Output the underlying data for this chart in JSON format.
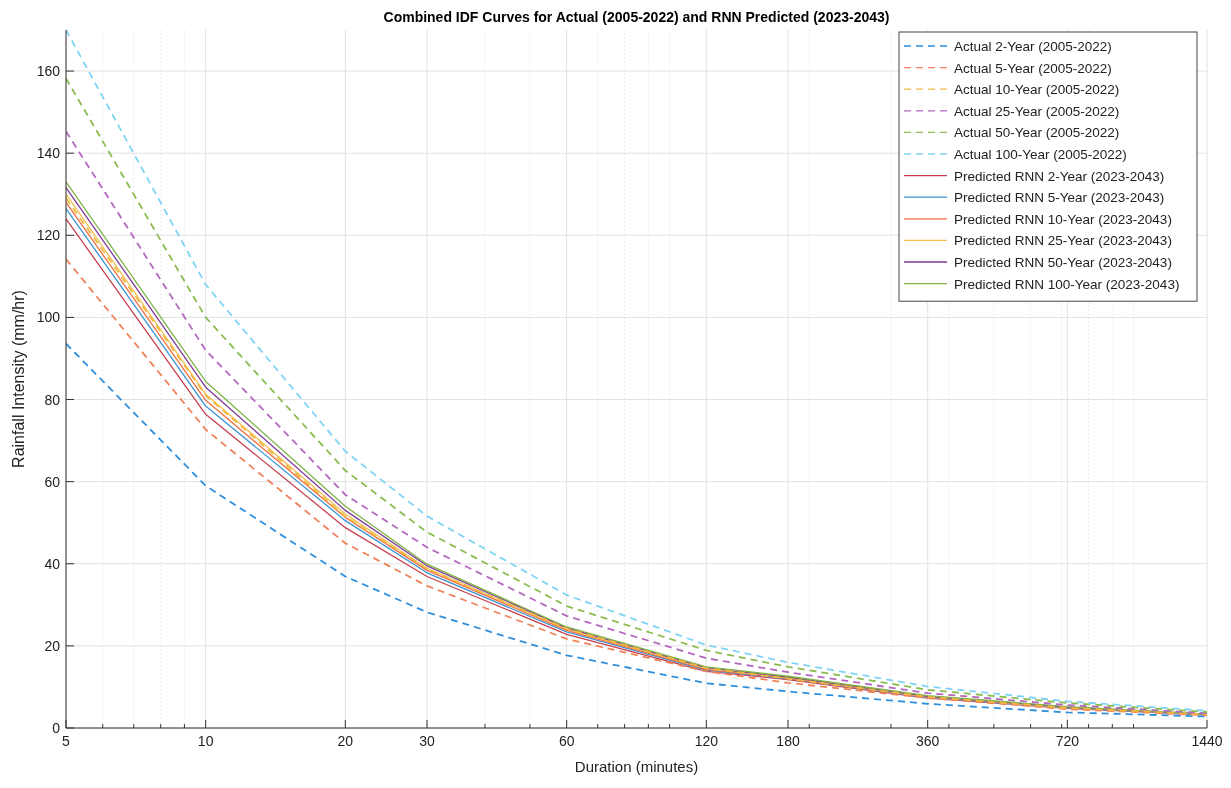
{
  "chart_data": {
    "type": "line",
    "title": "Combined IDF Curves for Actual (2005-2022) and RNN Predicted (2023-2043)",
    "xlabel": "Duration (minutes)",
    "ylabel": "Rainfall Intensity (mm/hr)",
    "x": [
      5,
      10,
      20,
      30,
      60,
      120,
      180,
      360,
      720,
      1440
    ],
    "log": "x",
    "xlim": [
      5,
      1440
    ],
    "xticks": [
      5,
      10,
      20,
      30,
      60,
      120,
      180,
      360,
      720,
      1440
    ],
    "ylim": [
      0,
      170
    ],
    "yticks": [
      0,
      20,
      40,
      60,
      80,
      100,
      120,
      140,
      160
    ],
    "grid": true,
    "legend": "top right",
    "series": [
      {
        "name": "Actual 2-Year (2005-2022)",
        "color": "#2f8fdc",
        "line_style": "dashed",
        "values": [
          93.6,
          59,
          36.9,
          28.2,
          17.7,
          10.9,
          8.9,
          5.9,
          3.8,
          2.8
        ]
      },
      {
        "name": "Actual 5-Year (2005-2022)",
        "color": "#f0825a",
        "line_style": "dashed",
        "values": [
          114.2,
          72.7,
          45,
          34.6,
          21.7,
          13.8,
          11,
          7.3,
          4.6,
          3.1
        ]
      },
      {
        "name": "Actual 10-Year (2005-2022)",
        "color": "#f0b840",
        "line_style": "dashed",
        "values": [
          129,
          81,
          51.5,
          38.8,
          24.2,
          14.6,
          12,
          7.6,
          4.9,
          3.3
        ]
      },
      {
        "name": "Actual 25-Year (2005-2022)",
        "color": "#b468c0",
        "line_style": "dashed",
        "values": [
          145.3,
          92,
          56.8,
          44,
          27.3,
          17,
          13.6,
          8.5,
          5.6,
          3.6
        ]
      },
      {
        "name": "Actual 50-Year (2005-2022)",
        "color": "#8cbc50",
        "line_style": "dashed",
        "values": [
          158.2,
          100,
          62.7,
          47.7,
          29.7,
          18.9,
          14.9,
          9.3,
          6.1,
          3.9
        ]
      },
      {
        "name": "Actual 100-Year (2005-2022)",
        "color": "#7fd4f5",
        "line_style": "dashed",
        "values": [
          170,
          108,
          67.4,
          51.6,
          32.4,
          20.2,
          16,
          10.1,
          6.5,
          4.2
        ]
      },
      {
        "name": "Predicted RNN 2-Year (2023-2043)",
        "color": "#c8404f",
        "line_style": "solid",
        "values": [
          124,
          76.4,
          48.8,
          36.9,
          22.8,
          13.8,
          11.8,
          7.3,
          4.8,
          3.2
        ]
      },
      {
        "name": "Predicted RNN 5-Year (2023-2043)",
        "color": "#3a94d4",
        "line_style": "solid",
        "values": [
          126.5,
          78.4,
          50.5,
          37.8,
          23.4,
          14.1,
          12,
          7.4,
          4.9,
          3.2
        ]
      },
      {
        "name": "Predicted RNN 10-Year (2023-2043)",
        "color": "#f07040",
        "line_style": "solid",
        "values": [
          128,
          79.8,
          51.3,
          38.4,
          23.8,
          14.3,
          12.1,
          7.5,
          5,
          3.3
        ]
      },
      {
        "name": "Predicted RNN 25-Year (2023-2043)",
        "color": "#f4c050",
        "line_style": "solid",
        "values": [
          130,
          81.3,
          52.1,
          38.9,
          24.1,
          14.5,
          12.3,
          7.6,
          5,
          3.3
        ]
      },
      {
        "name": "Predicted RNN 50-Year (2023-2043)",
        "color": "#7e3c96",
        "line_style": "solid",
        "values": [
          131.6,
          83,
          53,
          39.5,
          24.4,
          14.7,
          12.4,
          7.7,
          5.1,
          3.4
        ]
      },
      {
        "name": "Predicted RNN 100-Year (2023-2043)",
        "color": "#80b448",
        "line_style": "solid",
        "values": [
          133,
          84.4,
          54,
          39.9,
          24.6,
          14.9,
          12.6,
          7.9,
          5.2,
          3.4
        ]
      }
    ]
  }
}
